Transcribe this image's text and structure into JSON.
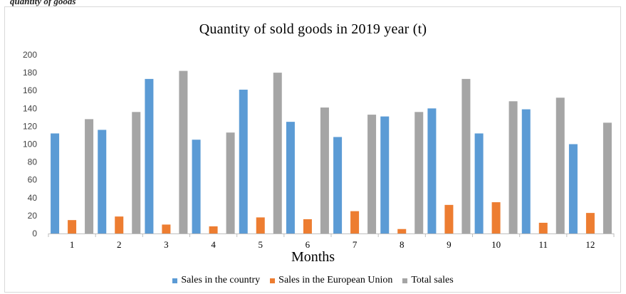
{
  "header_text": "quantity of goods",
  "chart_data": {
    "type": "bar",
    "title": "Quantity of sold goods in 2019 year (t)",
    "xlabel": "Months",
    "ylabel": "",
    "ylim": [
      0,
      200
    ],
    "yticks": [
      0,
      20,
      40,
      60,
      80,
      100,
      120,
      140,
      160,
      180,
      200
    ],
    "grid": false,
    "legend_position": "bottom",
    "categories": [
      "1",
      "2",
      "3",
      "4",
      "5",
      "6",
      "7",
      "8",
      "9",
      "10",
      "11",
      "12"
    ],
    "series": [
      {
        "name": "Sales in the country",
        "color": "#5b9bd5",
        "values": [
          112,
          116,
          173,
          105,
          161,
          125,
          108,
          131,
          140,
          112,
          139,
          100
        ]
      },
      {
        "name": "Sales in the European Union",
        "color": "#ed7d31",
        "values": [
          15,
          19,
          10,
          8,
          18,
          16,
          25,
          5,
          32,
          35,
          12,
          23
        ]
      },
      {
        "name": "Total sales",
        "color": "#a5a5a5",
        "values": [
          128,
          136,
          182,
          113,
          180,
          141,
          133,
          136,
          173,
          148,
          152,
          124
        ]
      }
    ]
  }
}
